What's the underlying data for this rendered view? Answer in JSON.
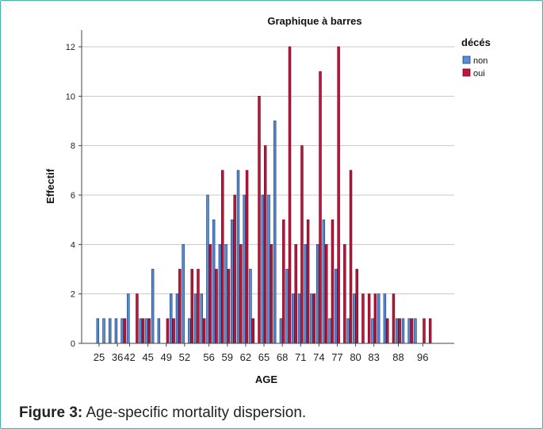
{
  "caption": {
    "label": "Figure 3:",
    "text": " Age-specific mortality dispersion."
  },
  "chart_data": {
    "type": "bar",
    "title": "Graphique à barres",
    "xlabel": "AGE",
    "ylabel": "Effectif",
    "ylim": [
      0,
      12
    ],
    "yticks": [
      0,
      2,
      4,
      6,
      8,
      10,
      12
    ],
    "grid": "horizontal",
    "legend": {
      "title": "décés",
      "position": "top-right"
    },
    "categories": [
      "25",
      "26",
      "35",
      "36",
      "39",
      "42",
      "43",
      "44",
      "45",
      "46",
      "47",
      "49",
      "50",
      "51",
      "52",
      "53",
      "54",
      "55",
      "56",
      "57",
      "58",
      "59",
      "60",
      "61",
      "62",
      "63",
      "64",
      "65",
      "66",
      "67",
      "68",
      "69",
      "70",
      "71",
      "72",
      "73",
      "74",
      "75",
      "76",
      "77",
      "78",
      "79",
      "80",
      "81",
      "82",
      "83",
      "84",
      "85",
      "86",
      "88",
      "90",
      "94",
      "95",
      "96",
      "98"
    ],
    "tick_labels": [
      "25",
      "36",
      "42",
      "45",
      "49",
      "52",
      "56",
      "59",
      "62",
      "65",
      "68",
      "71",
      "74",
      "77",
      "80",
      "83",
      "88",
      "96"
    ],
    "series": [
      {
        "name": "non",
        "color": "#5a8fd6",
        "values": [
          1,
          1,
          1,
          1,
          1,
          2,
          0,
          1,
          1,
          3,
          1,
          0,
          2,
          2,
          4,
          1,
          2,
          2,
          6,
          5,
          4,
          4,
          5,
          7,
          6,
          3,
          0,
          6,
          6,
          9,
          1,
          3,
          2,
          2,
          4,
          2,
          4,
          5,
          1,
          3,
          0,
          1,
          2,
          0,
          0,
          1,
          2,
          2,
          0,
          1,
          1,
          1,
          1,
          0,
          0
        ]
      },
      {
        "name": "oui",
        "color": "#c0143c",
        "values": [
          0,
          0,
          0,
          0,
          1,
          0,
          2,
          1,
          1,
          0,
          0,
          1,
          1,
          3,
          0,
          3,
          3,
          1,
          4,
          3,
          7,
          3,
          6,
          4,
          7,
          1,
          10,
          8,
          4,
          0,
          5,
          12,
          4,
          8,
          5,
          2,
          11,
          4,
          5,
          12,
          4,
          7,
          3,
          2,
          2,
          2,
          0,
          1,
          2,
          1,
          0,
          1,
          0,
          1,
          1
        ]
      }
    ]
  }
}
